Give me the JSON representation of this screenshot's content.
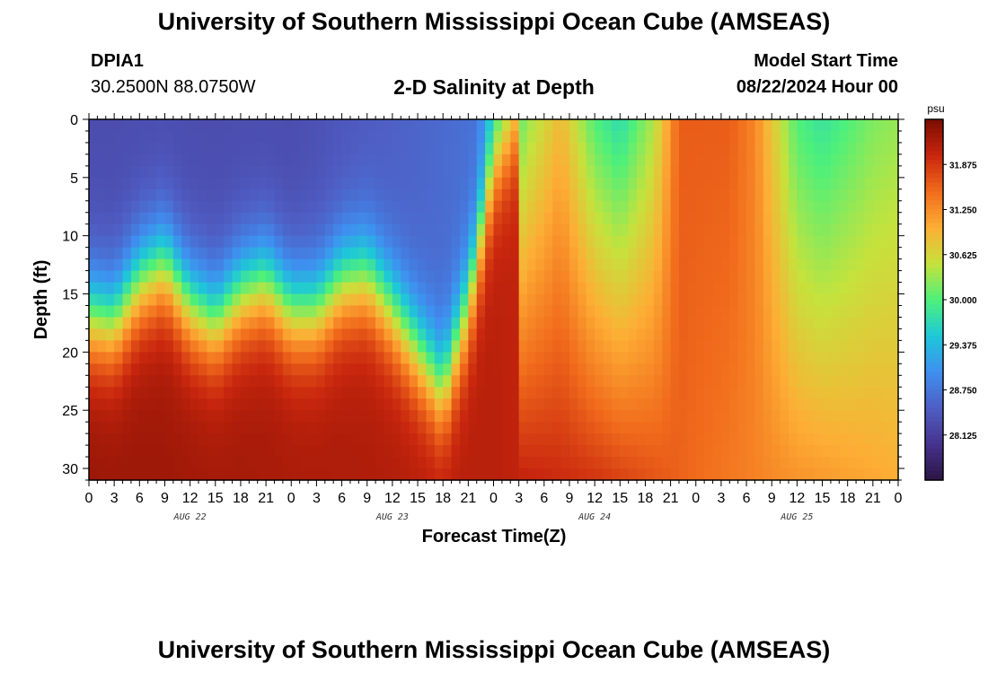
{
  "header": {
    "title": "University of Southern Mississippi Ocean Cube (AMSEAS)",
    "station_id": "DPIA1",
    "station_coords": "30.2500N  88.0750W",
    "chart_title": "2-D Salinity at Depth",
    "model_start_label": "Model Start Time",
    "model_start_value": "08/22/2024 Hour 00"
  },
  "footer": {
    "title": "University of Southern Mississippi Ocean Cube (AMSEAS)"
  },
  "chart_data": {
    "type": "heatmap",
    "title": "2-D Salinity at Depth",
    "xlabel": "Forecast Time(Z)",
    "ylabel": "Depth (ft)",
    "x_range_hours": [
      0,
      96
    ],
    "x_tick_step_hours": 3,
    "x_tick_labels": [
      "0",
      "3",
      "6",
      "9",
      "12",
      "15",
      "18",
      "21",
      "0",
      "3",
      "6",
      "9",
      "12",
      "15",
      "18",
      "21",
      "0",
      "3",
      "6",
      "9",
      "12",
      "15",
      "18",
      "21",
      "0",
      "3",
      "6",
      "9",
      "12",
      "15",
      "18",
      "21",
      "0"
    ],
    "day_labels": [
      {
        "label": "AUG 22",
        "center_hour": 12
      },
      {
        "label": "AUG 23",
        "center_hour": 36
      },
      {
        "label": "AUG 24",
        "center_hour": 60
      },
      {
        "label": "AUG 25",
        "center_hour": 84
      }
    ],
    "y_range_ft": [
      0,
      31
    ],
    "y_ticks": [
      "0",
      "5",
      "10",
      "15",
      "20",
      "25",
      "30"
    ],
    "colorbar": {
      "unit": "psu",
      "range": [
        27.5,
        32.5
      ],
      "tick_labels": [
        "31.875",
        "31.250",
        "30.625",
        "30.000",
        "29.375",
        "28.750",
        "28.125"
      ],
      "colors": [
        "#2c1444",
        "#46338e",
        "#4f5ec4",
        "#3f8ff0",
        "#1ec8d8",
        "#4ef07a",
        "#c6e23c",
        "#fdae35",
        "#f16b1c",
        "#c8260e",
        "#7a0d02"
      ]
    },
    "halocline_depth_ft": [
      {
        "hour": 0,
        "depth": 17
      },
      {
        "hour": 3,
        "depth": 17.5
      },
      {
        "hour": 6,
        "depth": 14
      },
      {
        "hour": 9,
        "depth": 12.5
      },
      {
        "hour": 12,
        "depth": 16
      },
      {
        "hour": 15,
        "depth": 17.5
      },
      {
        "hour": 18,
        "depth": 15
      },
      {
        "hour": 21,
        "depth": 14
      },
      {
        "hour": 24,
        "depth": 16.5
      },
      {
        "hour": 27,
        "depth": 16.5
      },
      {
        "hour": 30,
        "depth": 14
      },
      {
        "hour": 33,
        "depth": 13.5
      },
      {
        "hour": 36,
        "depth": 16.5
      },
      {
        "hour": 39,
        "depth": 20
      },
      {
        "hour": 42,
        "depth": 23.5
      },
      {
        "hour": 45,
        "depth": 16
      },
      {
        "hour": 48,
        "depth": 4
      },
      {
        "hour": 51,
        "depth": 0
      },
      {
        "hour": 96,
        "depth": 0
      }
    ],
    "surface_salinity_psu": [
      {
        "hour": 0,
        "value": 28.3
      },
      {
        "hour": 24,
        "value": 28.3
      },
      {
        "hour": 46,
        "value": 28.7
      },
      {
        "hour": 48,
        "value": 29.4
      },
      {
        "hour": 52,
        "value": 30.3
      },
      {
        "hour": 56,
        "value": 30.9
      },
      {
        "hour": 60,
        "value": 30.0
      },
      {
        "hour": 63,
        "value": 29.7
      },
      {
        "hour": 67,
        "value": 30.4
      },
      {
        "hour": 70,
        "value": 31.6
      },
      {
        "hour": 76,
        "value": 31.6
      },
      {
        "hour": 79,
        "value": 31.3
      },
      {
        "hour": 84,
        "value": 30.0
      },
      {
        "hour": 87,
        "value": 29.8
      },
      {
        "hour": 93,
        "value": 30.2
      },
      {
        "hour": 96,
        "value": 30.3
      }
    ],
    "bottom_salinity_psu": [
      {
        "hour": 0,
        "value": 32.3
      },
      {
        "hour": 48,
        "value": 32.1
      },
      {
        "hour": 60,
        "value": 31.9
      },
      {
        "hour": 72,
        "value": 31.5
      },
      {
        "hour": 84,
        "value": 31.2
      },
      {
        "hour": 96,
        "value": 31.0
      }
    ]
  }
}
